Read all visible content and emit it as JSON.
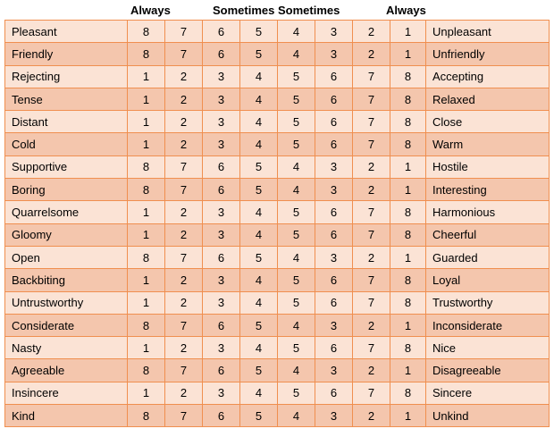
{
  "header": {
    "left_always": "Always",
    "sometimes_1": "Sometimes",
    "sometimes_2": "Sometimes",
    "right_always": "Always"
  },
  "colors": {
    "border": "#f08f4f",
    "row_light": "#fbe3d5",
    "row_dark": "#f4c6ad"
  },
  "rows": [
    {
      "left": "Pleasant",
      "values": [
        "8",
        "7",
        "6",
        "5",
        "4",
        "3",
        "2",
        "1"
      ],
      "right": "Unpleasant"
    },
    {
      "left": "Friendly",
      "values": [
        "8",
        "7",
        "6",
        "5",
        "4",
        "3",
        "2",
        "1"
      ],
      "right": "Unfriendly"
    },
    {
      "left": "Rejecting",
      "values": [
        "1",
        "2",
        "3",
        "4",
        "5",
        "6",
        "7",
        "8"
      ],
      "right": "Accepting"
    },
    {
      "left": "Tense",
      "values": [
        "1",
        "2",
        "3",
        "4",
        "5",
        "6",
        "7",
        "8"
      ],
      "right": "Relaxed"
    },
    {
      "left": "Distant",
      "values": [
        "1",
        "2",
        "3",
        "4",
        "5",
        "6",
        "7",
        "8"
      ],
      "right": "Close"
    },
    {
      "left": "Cold",
      "values": [
        "1",
        "2",
        "3",
        "4",
        "5",
        "6",
        "7",
        "8"
      ],
      "right": "Warm"
    },
    {
      "left": "Supportive",
      "values": [
        "8",
        "7",
        "6",
        "5",
        "4",
        "3",
        "2",
        "1"
      ],
      "right": "Hostile"
    },
    {
      "left": "Boring",
      "values": [
        "8",
        "7",
        "6",
        "5",
        "4",
        "3",
        "2",
        "1"
      ],
      "right": "Interesting"
    },
    {
      "left": "Quarrelsome",
      "values": [
        "1",
        "2",
        "3",
        "4",
        "5",
        "6",
        "7",
        "8"
      ],
      "right": "Harmonious"
    },
    {
      "left": "Gloomy",
      "values": [
        "1",
        "2",
        "3",
        "4",
        "5",
        "6",
        "7",
        "8"
      ],
      "right": "Cheerful"
    },
    {
      "left": "Open",
      "values": [
        "8",
        "7",
        "6",
        "5",
        "4",
        "3",
        "2",
        "1"
      ],
      "right": "Guarded"
    },
    {
      "left": "Backbiting",
      "values": [
        "1",
        "2",
        "3",
        "4",
        "5",
        "6",
        "7",
        "8"
      ],
      "right": "Loyal"
    },
    {
      "left": "Untrustworthy",
      "values": [
        "1",
        "2",
        "3",
        "4",
        "5",
        "6",
        "7",
        "8"
      ],
      "right": "Trustworthy"
    },
    {
      "left": "Considerate",
      "values": [
        "8",
        "7",
        "6",
        "5",
        "4",
        "3",
        "2",
        "1"
      ],
      "right": "Inconsiderate"
    },
    {
      "left": "Nasty",
      "values": [
        "1",
        "2",
        "3",
        "4",
        "5",
        "6",
        "7",
        "8"
      ],
      "right": "Nice"
    },
    {
      "left": "Agreeable",
      "values": [
        "8",
        "7",
        "6",
        "5",
        "4",
        "3",
        "2",
        "1"
      ],
      "right": "Disagreeable"
    },
    {
      "left": "Insincere",
      "values": [
        "1",
        "2",
        "3",
        "4",
        "5",
        "6",
        "7",
        "8"
      ],
      "right": "Sincere"
    },
    {
      "left": "Kind",
      "values": [
        "8",
        "7",
        "6",
        "5",
        "4",
        "3",
        "2",
        "1"
      ],
      "right": "Unkind"
    }
  ]
}
